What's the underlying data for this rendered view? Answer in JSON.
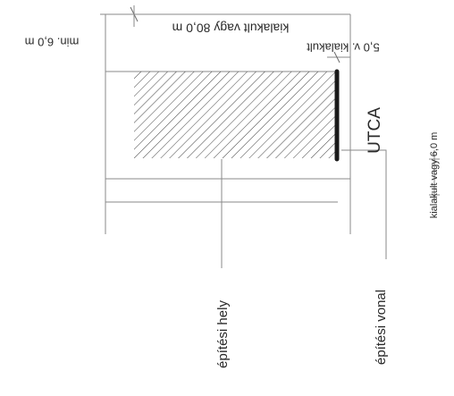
{
  "labels": {
    "street": "UTCA",
    "dim_top_right": "kialakult vagy 80,0 m",
    "dim_mid": "5,0 v. kialakult",
    "dim_left": "min. 6,0 m",
    "dim_right": "kialakult vagy 6,0 m",
    "building_place": "építési hely",
    "building_line": "építési vonal"
  },
  "colors": {
    "line": "#8a8a8a",
    "hatch": "#444444",
    "building_line": "#1a1a1a",
    "text": "#2a2a2a"
  }
}
